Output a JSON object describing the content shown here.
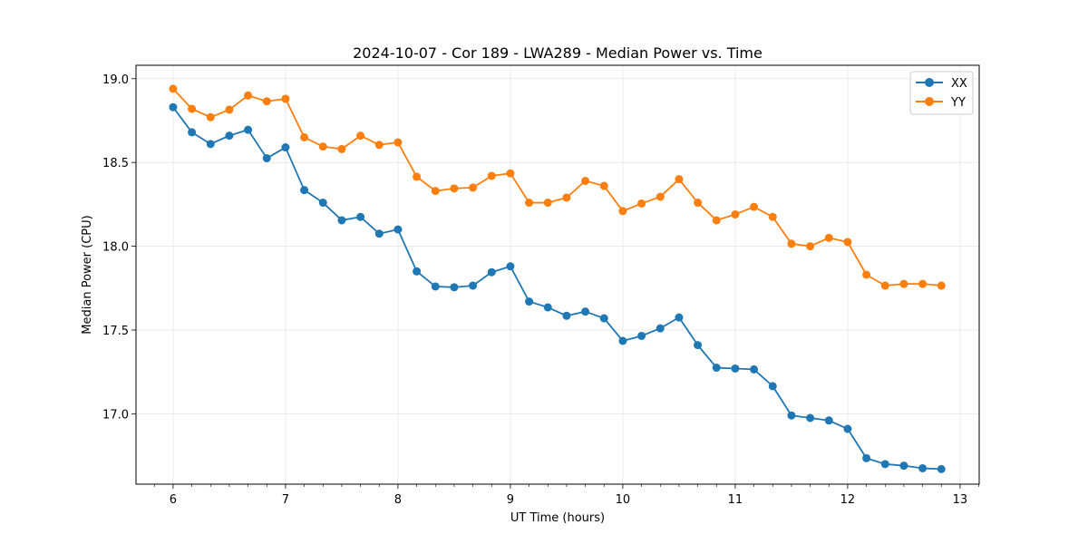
{
  "chart_data": {
    "type": "line",
    "title": "2024-10-07 - Cor 189 - LWA289 - Median Power vs. Time",
    "xlabel": "UT Time (hours)",
    "ylabel": "Median Power (CPU)",
    "xlim": [
      5.67,
      13.17
    ],
    "ylim": [
      16.58,
      19.08
    ],
    "xticks": [
      6,
      7,
      8,
      9,
      10,
      11,
      12,
      13
    ],
    "yticks": [
      17.0,
      17.5,
      18.0,
      18.5,
      19.0
    ],
    "xtick_labels": [
      "6",
      "7",
      "8",
      "9",
      "10",
      "11",
      "12",
      "13"
    ],
    "ytick_labels": [
      "17.0",
      "17.5",
      "18.0",
      "18.5",
      "19.0"
    ],
    "grid": true,
    "legend_position": "top-right",
    "x": [
      6.0,
      6.1667,
      6.3333,
      6.5,
      6.6667,
      6.8333,
      7.0,
      7.1667,
      7.3333,
      7.5,
      7.6667,
      7.8333,
      8.0,
      8.1667,
      8.3333,
      8.5,
      8.6667,
      8.8333,
      9.0,
      9.1667,
      9.3333,
      9.5,
      9.6667,
      9.8333,
      10.0,
      10.1667,
      10.3333,
      10.5,
      10.6667,
      10.8333,
      11.0,
      11.1667,
      11.3333,
      11.5,
      11.6667,
      11.8333,
      12.0,
      12.1667,
      12.3333,
      12.5,
      12.6667,
      12.8333
    ],
    "series": [
      {
        "name": "XX",
        "color": "#1f77b4",
        "values": [
          18.83,
          18.68,
          18.61,
          18.66,
          18.695,
          18.525,
          18.59,
          18.335,
          18.26,
          18.155,
          18.175,
          18.075,
          18.1,
          17.85,
          17.76,
          17.755,
          17.765,
          17.845,
          17.88,
          17.67,
          17.635,
          17.585,
          17.61,
          17.57,
          17.435,
          17.465,
          17.51,
          17.575,
          17.41,
          17.275,
          17.27,
          17.265,
          17.165,
          16.99,
          16.975,
          16.96,
          16.91,
          16.735,
          16.7,
          16.69,
          16.675,
          16.67
        ]
      },
      {
        "name": "YY",
        "color": "#ff7f0e",
        "values": [
          18.94,
          18.82,
          18.77,
          18.815,
          18.9,
          18.865,
          18.88,
          18.65,
          18.595,
          18.58,
          18.66,
          18.605,
          18.62,
          18.415,
          18.33,
          18.345,
          18.35,
          18.42,
          18.435,
          18.26,
          18.26,
          18.29,
          18.39,
          18.36,
          18.21,
          18.255,
          18.295,
          18.4,
          18.26,
          18.155,
          18.19,
          18.235,
          18.175,
          18.015,
          18.0,
          18.05,
          18.025,
          17.83,
          17.765,
          17.775,
          17.775,
          17.765
        ]
      }
    ]
  }
}
